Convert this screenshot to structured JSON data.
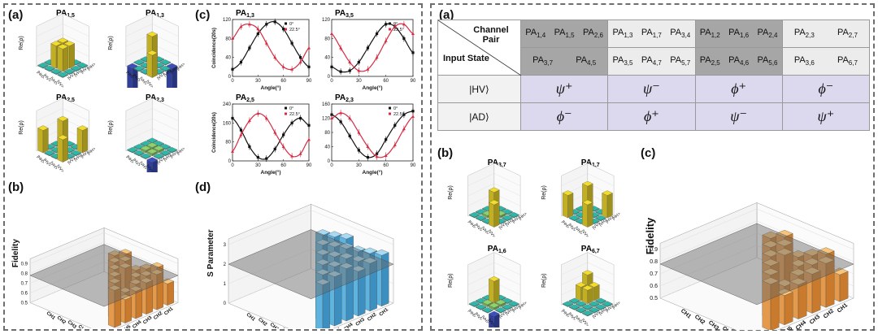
{
  "labels": {
    "a": "(a)",
    "b": "(b)",
    "c": "(c)",
    "d": "(d)"
  },
  "left": {
    "matrices": [
      {
        "title": "PA",
        "sub": "1,5",
        "ylabel": "Re(ρ)"
      },
      {
        "title": "PA",
        "sub": "1,3",
        "ylabel": "Re(ρ)"
      },
      {
        "title": "PA",
        "sub": "2,5",
        "ylabel": "Re(ρ)"
      },
      {
        "title": "PA",
        "sub": "2,3",
        "ylabel": "Re(ρ)"
      }
    ],
    "basis": [
      "|HH>",
      "|HV>",
      "|VH>",
      "|VV>"
    ],
    "fidelity": {
      "ylabel": "Fidelity",
      "ticks": [
        "0.5",
        "0.6",
        "0.7",
        "0.8",
        "0.9"
      ],
      "axis_left": [
        "CH1",
        "CH2",
        "CH3",
        "CH4",
        "CH5",
        "CH6",
        "CH7"
      ],
      "axis_right": [
        "CH1",
        "CH2",
        "CH3",
        "CH4",
        "CH5",
        "CH6"
      ]
    },
    "sparam": {
      "ylabel": "S Parameter",
      "ticks": [
        "0",
        "1",
        "2",
        "3"
      ],
      "axis_left": [
        "CH1",
        "CH2",
        "CH3",
        "CH4",
        "CH5",
        "CH6",
        "CH7"
      ],
      "axis_right": [
        "CH1",
        "CH2",
        "CH3",
        "CH4",
        "CH5",
        "CH6"
      ]
    }
  },
  "chart_data": [
    {
      "type": "line",
      "title": "PA1,3",
      "xlabel": "Angle(°)",
      "ylabel": "Coincidence(20s)",
      "xlim": [
        0,
        90
      ],
      "ylim": [
        0,
        120
      ],
      "xticks": [
        "0",
        "30",
        "60",
        "90"
      ],
      "yticks": [
        "0",
        "40",
        "80",
        "120"
      ],
      "series": [
        {
          "name": "0°",
          "x": [
            0,
            10,
            20,
            30,
            40,
            50,
            60,
            70,
            80,
            90
          ],
          "y": [
            15,
            30,
            60,
            90,
            110,
            115,
            100,
            70,
            40,
            20
          ]
        },
        {
          "name": "22.5°",
          "x": [
            0,
            10,
            20,
            30,
            40,
            50,
            60,
            70,
            80,
            90
          ],
          "y": [
            80,
            105,
            110,
            100,
            70,
            40,
            20,
            15,
            30,
            60
          ]
        }
      ]
    },
    {
      "type": "line",
      "title": "PA3,5",
      "xlabel": "Angle(°)",
      "ylabel": "",
      "xlim": [
        0,
        90
      ],
      "ylim": [
        0,
        120
      ],
      "xticks": [
        "0",
        "30",
        "60",
        "90"
      ],
      "yticks": [
        "0",
        "40",
        "80",
        "120"
      ],
      "series": [
        {
          "name": "0°",
          "x": [
            0,
            10,
            20,
            30,
            40,
            50,
            60,
            70,
            80,
            90
          ],
          "y": [
            20,
            10,
            12,
            30,
            60,
            90,
            110,
            105,
            80,
            50
          ]
        },
        {
          "name": "22.5°",
          "x": [
            0,
            10,
            20,
            30,
            40,
            50,
            60,
            70,
            80,
            90
          ],
          "y": [
            90,
            60,
            30,
            12,
            15,
            40,
            75,
            105,
            110,
            90
          ]
        }
      ]
    },
    {
      "type": "line",
      "title": "PA2,5",
      "xlabel": "Angle(°)",
      "ylabel": "Coincidence(20s)",
      "xlim": [
        0,
        90
      ],
      "ylim": [
        0,
        240
      ],
      "xticks": [
        "0",
        "30",
        "60",
        "90"
      ],
      "yticks": [
        "0",
        "80",
        "160",
        "240"
      ],
      "series": [
        {
          "name": "0°",
          "x": [
            0,
            10,
            20,
            30,
            40,
            50,
            60,
            70,
            80,
            90
          ],
          "y": [
            180,
            130,
            60,
            15,
            10,
            50,
            110,
            160,
            180,
            150
          ]
        },
        {
          "name": "22.5°",
          "x": [
            0,
            10,
            20,
            30,
            40,
            50,
            60,
            70,
            80,
            90
          ],
          "y": [
            40,
            110,
            170,
            200,
            180,
            120,
            60,
            20,
            30,
            90
          ]
        }
      ]
    },
    {
      "type": "line",
      "title": "PA2,3",
      "xlabel": "Angle(°)",
      "ylabel": "",
      "xlim": [
        0,
        90
      ],
      "ylim": [
        0,
        160
      ],
      "xticks": [
        "0",
        "30",
        "60",
        "90"
      ],
      "yticks": [
        "0",
        "40",
        "80",
        "120",
        "160"
      ],
      "series": [
        {
          "name": "0°",
          "x": [
            0,
            10,
            20,
            30,
            40,
            50,
            60,
            70,
            80,
            90
          ],
          "y": [
            130,
            110,
            70,
            30,
            10,
            20,
            60,
            100,
            130,
            140
          ]
        },
        {
          "name": "22.5°",
          "x": [
            0,
            10,
            20,
            30,
            40,
            50,
            60,
            70,
            80,
            90
          ],
          "y": [
            120,
            135,
            120,
            80,
            40,
            12,
            15,
            45,
            90,
            125
          ]
        }
      ]
    }
  ],
  "table": {
    "header_top": "Channel Pair",
    "header_bottom": "Input State",
    "rows": [
      {
        "label": "|HV⟩",
        "cells": [
          "ψ⁺",
          "ψ⁻",
          "ϕ⁺",
          "ϕ⁻"
        ]
      },
      {
        "label": "|AD⟩",
        "cells": [
          "ϕ⁻",
          "ϕ⁺",
          "ψ⁻",
          "ψ⁺"
        ]
      }
    ],
    "groups": [
      {
        "top": [
          [
            "PA",
            "1,4"
          ],
          [
            "PA",
            "1,5"
          ],
          [
            "PA",
            "2,6"
          ]
        ],
        "bot": [
          [
            "PA",
            "3,7"
          ],
          [
            "PA",
            "4,5"
          ]
        ],
        "shade": "dark"
      },
      {
        "top": [
          [
            "PA",
            "1,3"
          ],
          [
            "PA",
            "1,7"
          ],
          [
            "PA",
            "3,4"
          ]
        ],
        "bot": [
          [
            "PA",
            "3,5"
          ],
          [
            "PA",
            "4,7"
          ],
          [
            "PA",
            "5,7"
          ]
        ],
        "shade": "light"
      },
      {
        "top": [
          [
            "PA",
            "1,2"
          ],
          [
            "PA",
            "1,6"
          ],
          [
            "PA",
            "2,4"
          ]
        ],
        "bot": [
          [
            "PA",
            "2,5"
          ],
          [
            "PA",
            "4,6"
          ],
          [
            "PA",
            "5,6"
          ]
        ],
        "shade": "dark"
      },
      {
        "top": [
          [
            "PA",
            "2,3"
          ],
          [
            "PA",
            "2,7"
          ]
        ],
        "bot": [
          [
            "PA",
            "3,6"
          ],
          [
            "PA",
            "6,7"
          ]
        ],
        "shade": "light"
      }
    ]
  },
  "right": {
    "matrices": [
      {
        "title": "PA",
        "sub": "3,7",
        "ylabel": "Re(ρ)"
      },
      {
        "title": "PA",
        "sub": "1,7",
        "ylabel": "Re(ρ)"
      },
      {
        "title": "PA",
        "sub": "1,6",
        "ylabel": "Re(ρ)"
      },
      {
        "title": "PA",
        "sub": "6,7",
        "ylabel": "Re(ρ)"
      }
    ],
    "fidelity": {
      "ylabel": "Fidelity",
      "ticks": [
        "0.5",
        "0.6",
        "0.7",
        "0.8",
        "0.9"
      ],
      "axis_left": [
        "CH1",
        "CH2",
        "CH3",
        "CH4",
        "CH5",
        "CH6",
        "CH7"
      ],
      "axis_right": [
        "CH1",
        "CH2",
        "CH3",
        "CH4",
        "CH5",
        "CH6"
      ]
    }
  }
}
